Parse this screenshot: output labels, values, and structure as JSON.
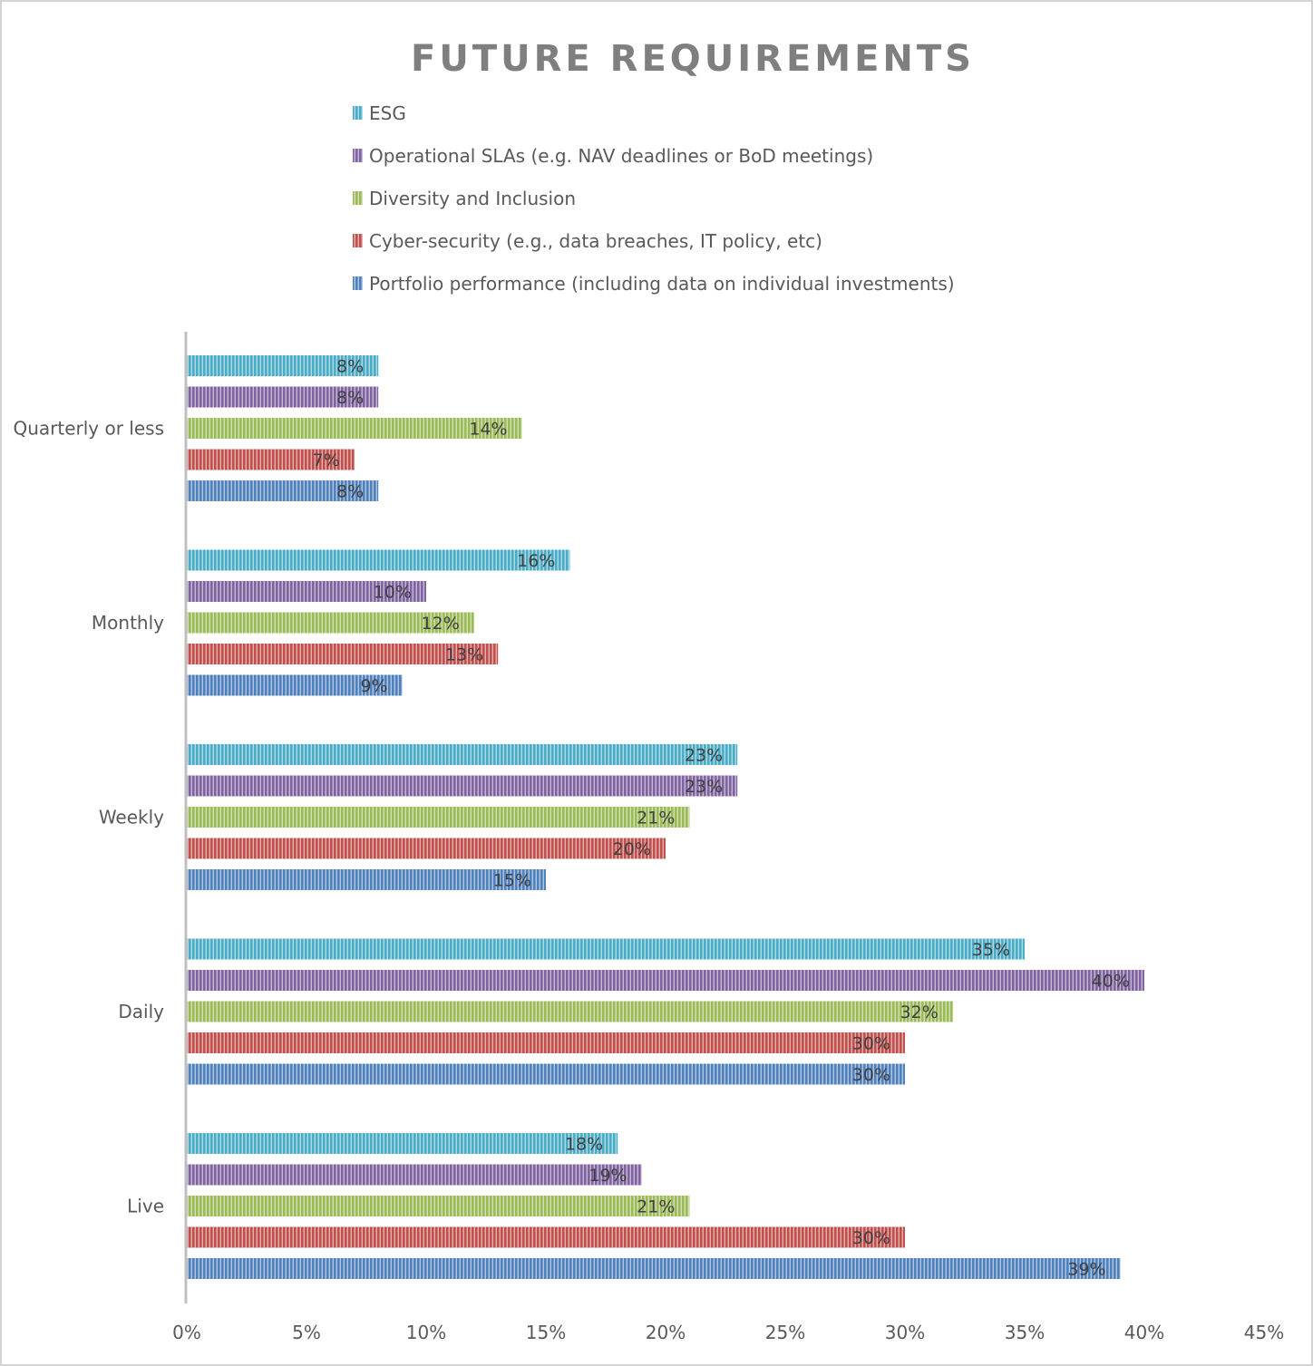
{
  "chart_data": {
    "type": "bar",
    "orientation": "horizontal",
    "title": "FUTURE REQUIREMENTS",
    "categories": [
      "Quarterly or less",
      "Monthly",
      "Weekly",
      "Daily",
      "Live"
    ],
    "series": [
      {
        "name": "ESG",
        "color": "#4bacc6",
        "values": [
          8,
          16,
          23,
          35,
          18
        ]
      },
      {
        "name": "Operational SLAs (e.g. NAV deadlines or BoD meetings)",
        "color": "#8064a2",
        "values": [
          8,
          10,
          23,
          40,
          19
        ]
      },
      {
        "name": "Diversity and Inclusion",
        "color": "#9bbb59",
        "values": [
          14,
          12,
          21,
          32,
          21
        ]
      },
      {
        "name": "Cyber-security (e.g., data breaches, IT policy, etc)",
        "color": "#c0504d",
        "values": [
          7,
          13,
          20,
          30,
          30
        ]
      },
      {
        "name": "Portfolio performance (including data on individual investments)",
        "color": "#4f81bd",
        "values": [
          8,
          9,
          15,
          30,
          39
        ]
      }
    ],
    "value_suffix": "%",
    "xlim": [
      0,
      45
    ],
    "x_ticks": [
      "0%",
      "5%",
      "10%",
      "15%",
      "20%",
      "25%",
      "30%",
      "35%",
      "40%",
      "45%"
    ],
    "legend_position": "top",
    "bar_pattern": "vertical-stripes",
    "grid": false
  }
}
